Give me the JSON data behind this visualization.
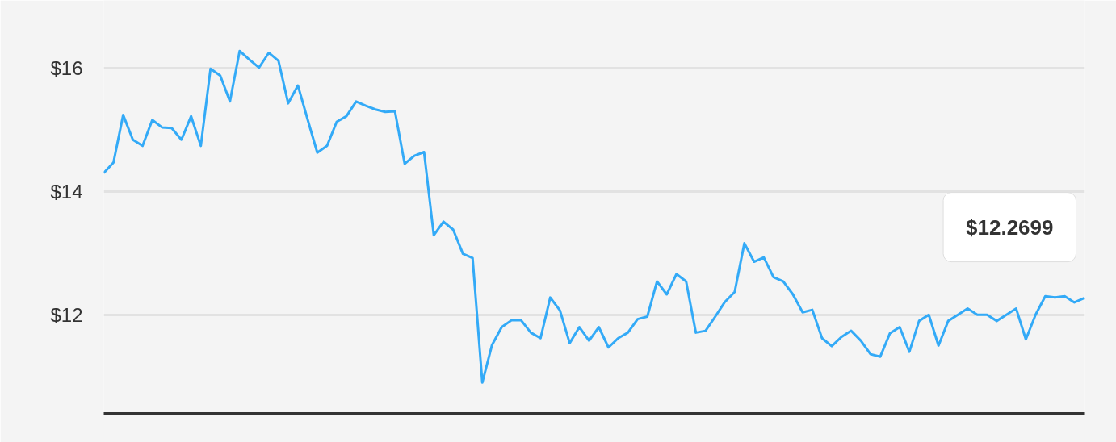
{
  "chart_data": {
    "type": "line",
    "color": "#33aaf7",
    "categories": [
      null,
      null,
      null,
      null,
      null,
      null,
      null,
      null,
      null,
      null,
      null,
      null,
      null,
      null,
      null,
      null,
      null,
      null,
      null,
      null,
      null,
      null,
      null,
      null,
      null,
      null,
      null,
      null,
      null,
      null,
      null,
      null,
      null,
      null,
      null,
      null,
      null,
      null,
      null,
      null,
      null,
      null,
      null,
      null,
      null,
      null,
      null,
      null,
      null,
      null,
      null,
      null,
      null,
      null,
      null,
      null,
      null,
      null,
      null,
      null,
      null,
      null,
      null,
      null,
      null,
      null,
      null,
      null,
      null,
      null,
      null,
      null,
      null,
      null,
      null,
      null,
      null,
      null,
      null,
      null,
      null,
      null,
      null,
      null,
      null,
      null,
      null,
      null,
      null,
      null,
      null,
      null,
      null,
      null,
      null,
      null,
      null,
      null,
      null,
      null,
      null,
      null
    ],
    "values": [
      14.3,
      14.47,
      15.24,
      14.84,
      14.74,
      15.16,
      15.04,
      15.03,
      14.84,
      15.22,
      14.74,
      15.99,
      15.88,
      15.46,
      16.28,
      16.14,
      16.01,
      16.25,
      16.12,
      15.43,
      15.72,
      15.17,
      14.63,
      14.74,
      15.13,
      15.22,
      15.46,
      15.39,
      15.33,
      15.29,
      15.3,
      14.45,
      14.58,
      14.64,
      13.29,
      13.51,
      13.38,
      12.99,
      12.92,
      10.9,
      11.51,
      11.8,
      11.91,
      11.91,
      11.71,
      11.62,
      12.28,
      12.07,
      11.54,
      11.8,
      11.58,
      11.8,
      11.47,
      11.62,
      11.71,
      11.93,
      11.97,
      12.54,
      12.33,
      12.66,
      12.54,
      11.71,
      11.74,
      11.97,
      12.21,
      12.37,
      13.16,
      12.86,
      12.93,
      12.61,
      12.54,
      12.33,
      12.04,
      12.08,
      11.62,
      11.49,
      11.64,
      11.74,
      11.58,
      11.36,
      11.32,
      11.7,
      11.8,
      11.4,
      11.9,
      12.0,
      11.5,
      11.9,
      12.0,
      12.1,
      12.0,
      12.0,
      11.9,
      12.0,
      12.1,
      11.6,
      12.0,
      12.3,
      12.28,
      12.3,
      12.2,
      12.27
    ],
    "ylim": [
      10.4,
      17.1
    ],
    "yticks": [
      {
        "value": 12,
        "label": "$12"
      },
      {
        "value": 14,
        "label": "$14"
      },
      {
        "value": 16,
        "label": "$16"
      }
    ],
    "grid": "y",
    "tick_labels": "y",
    "annotations": [
      "$12.2699"
    ]
  }
}
